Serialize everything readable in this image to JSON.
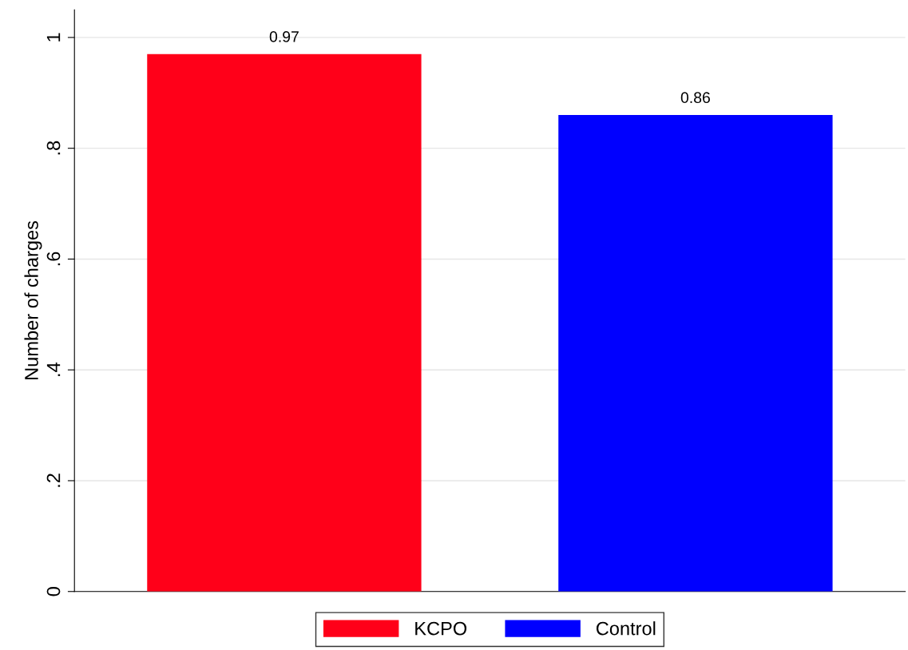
{
  "chart_data": {
    "type": "bar",
    "ylabel": "Number of charges",
    "categories": [
      null
    ],
    "series": [
      {
        "name": "KCPO",
        "color": "#ff0019",
        "values": [
          0.97
        ]
      },
      {
        "name": "Control",
        "color": "#0000ff",
        "values": [
          0.86
        ]
      }
    ],
    "ylim": [
      0,
      1.05
    ],
    "yticks": [
      0,
      {
        "value": 0.2,
        "label": ".2"
      },
      {
        "value": 0.4,
        "label": ".4"
      },
      {
        "value": 0.6,
        "label": ".6"
      },
      {
        "value": 0.8,
        "label": ".8"
      },
      1
    ],
    "data_labels": true,
    "grid": "y",
    "legend": "bottom"
  }
}
